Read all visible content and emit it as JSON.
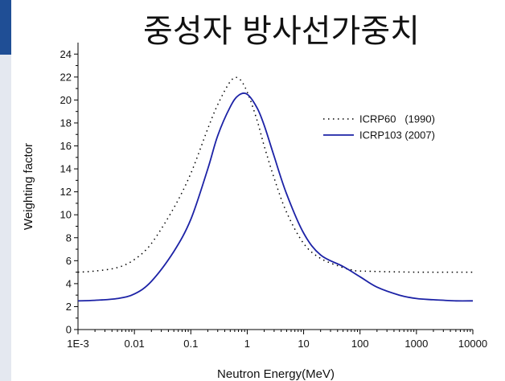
{
  "chart_data": {
    "type": "line",
    "title": "중성자 방사선가중치",
    "xlabel": "Neutron Energy(MeV)",
    "ylabel": "Weighting factor",
    "xscale": "log",
    "xlim": [
      0.001,
      10000
    ],
    "ylim": [
      0,
      25
    ],
    "xticks": [
      0.001,
      0.01,
      0.1,
      1,
      10,
      100,
      1000,
      10000
    ],
    "xtick_labels": [
      "1E-3",
      "0.01",
      "0.1",
      "1",
      "10",
      "100",
      "1000",
      "10000"
    ],
    "yticks": [
      0,
      2,
      4,
      6,
      8,
      10,
      12,
      14,
      16,
      18,
      20,
      22,
      24
    ],
    "ytick_labels": [
      "0",
      "2",
      "4",
      "6",
      "8",
      "10",
      "12",
      "14",
      "16",
      "18",
      "20",
      "22",
      "24"
    ],
    "legend_position": "top-right",
    "series": [
      {
        "name": "ICRP60   (1990)",
        "style": "dotted",
        "color": "#000000",
        "x": [
          0.001,
          0.002,
          0.005,
          0.01,
          0.02,
          0.05,
          0.1,
          0.2,
          0.3,
          0.5,
          0.7,
          1.0,
          1.5,
          2,
          3,
          5,
          10,
          20,
          50,
          70,
          100,
          1000,
          10000
        ],
        "y": [
          5.0,
          5.1,
          5.4,
          6.1,
          7.5,
          10.6,
          13.6,
          17.5,
          19.6,
          21.6,
          21.9,
          20.7,
          18.2,
          16.0,
          13.2,
          10.2,
          7.5,
          6.2,
          5.4,
          5.2,
          5.1,
          5.0,
          5.0
        ]
      },
      {
        "name": "ICRP103 (2007)",
        "style": "solid",
        "color": "#1c22a6",
        "x": [
          0.001,
          0.002,
          0.005,
          0.01,
          0.02,
          0.05,
          0.1,
          0.2,
          0.3,
          0.5,
          0.7,
          1.0,
          1.5,
          2,
          3,
          5,
          10,
          20,
          50,
          100,
          200,
          500,
          1000,
          2000,
          5000,
          10000
        ],
        "y": [
          2.5,
          2.55,
          2.7,
          3.1,
          4.2,
          6.8,
          9.6,
          14.0,
          16.9,
          19.4,
          20.4,
          20.5,
          19.3,
          17.8,
          15.1,
          11.8,
          8.4,
          6.5,
          5.5,
          4.6,
          3.7,
          3.0,
          2.7,
          2.6,
          2.5,
          2.5
        ]
      }
    ]
  },
  "colors": {
    "sidebar": "#e4e8f0",
    "sidebar_accent": "#1f4e95"
  }
}
